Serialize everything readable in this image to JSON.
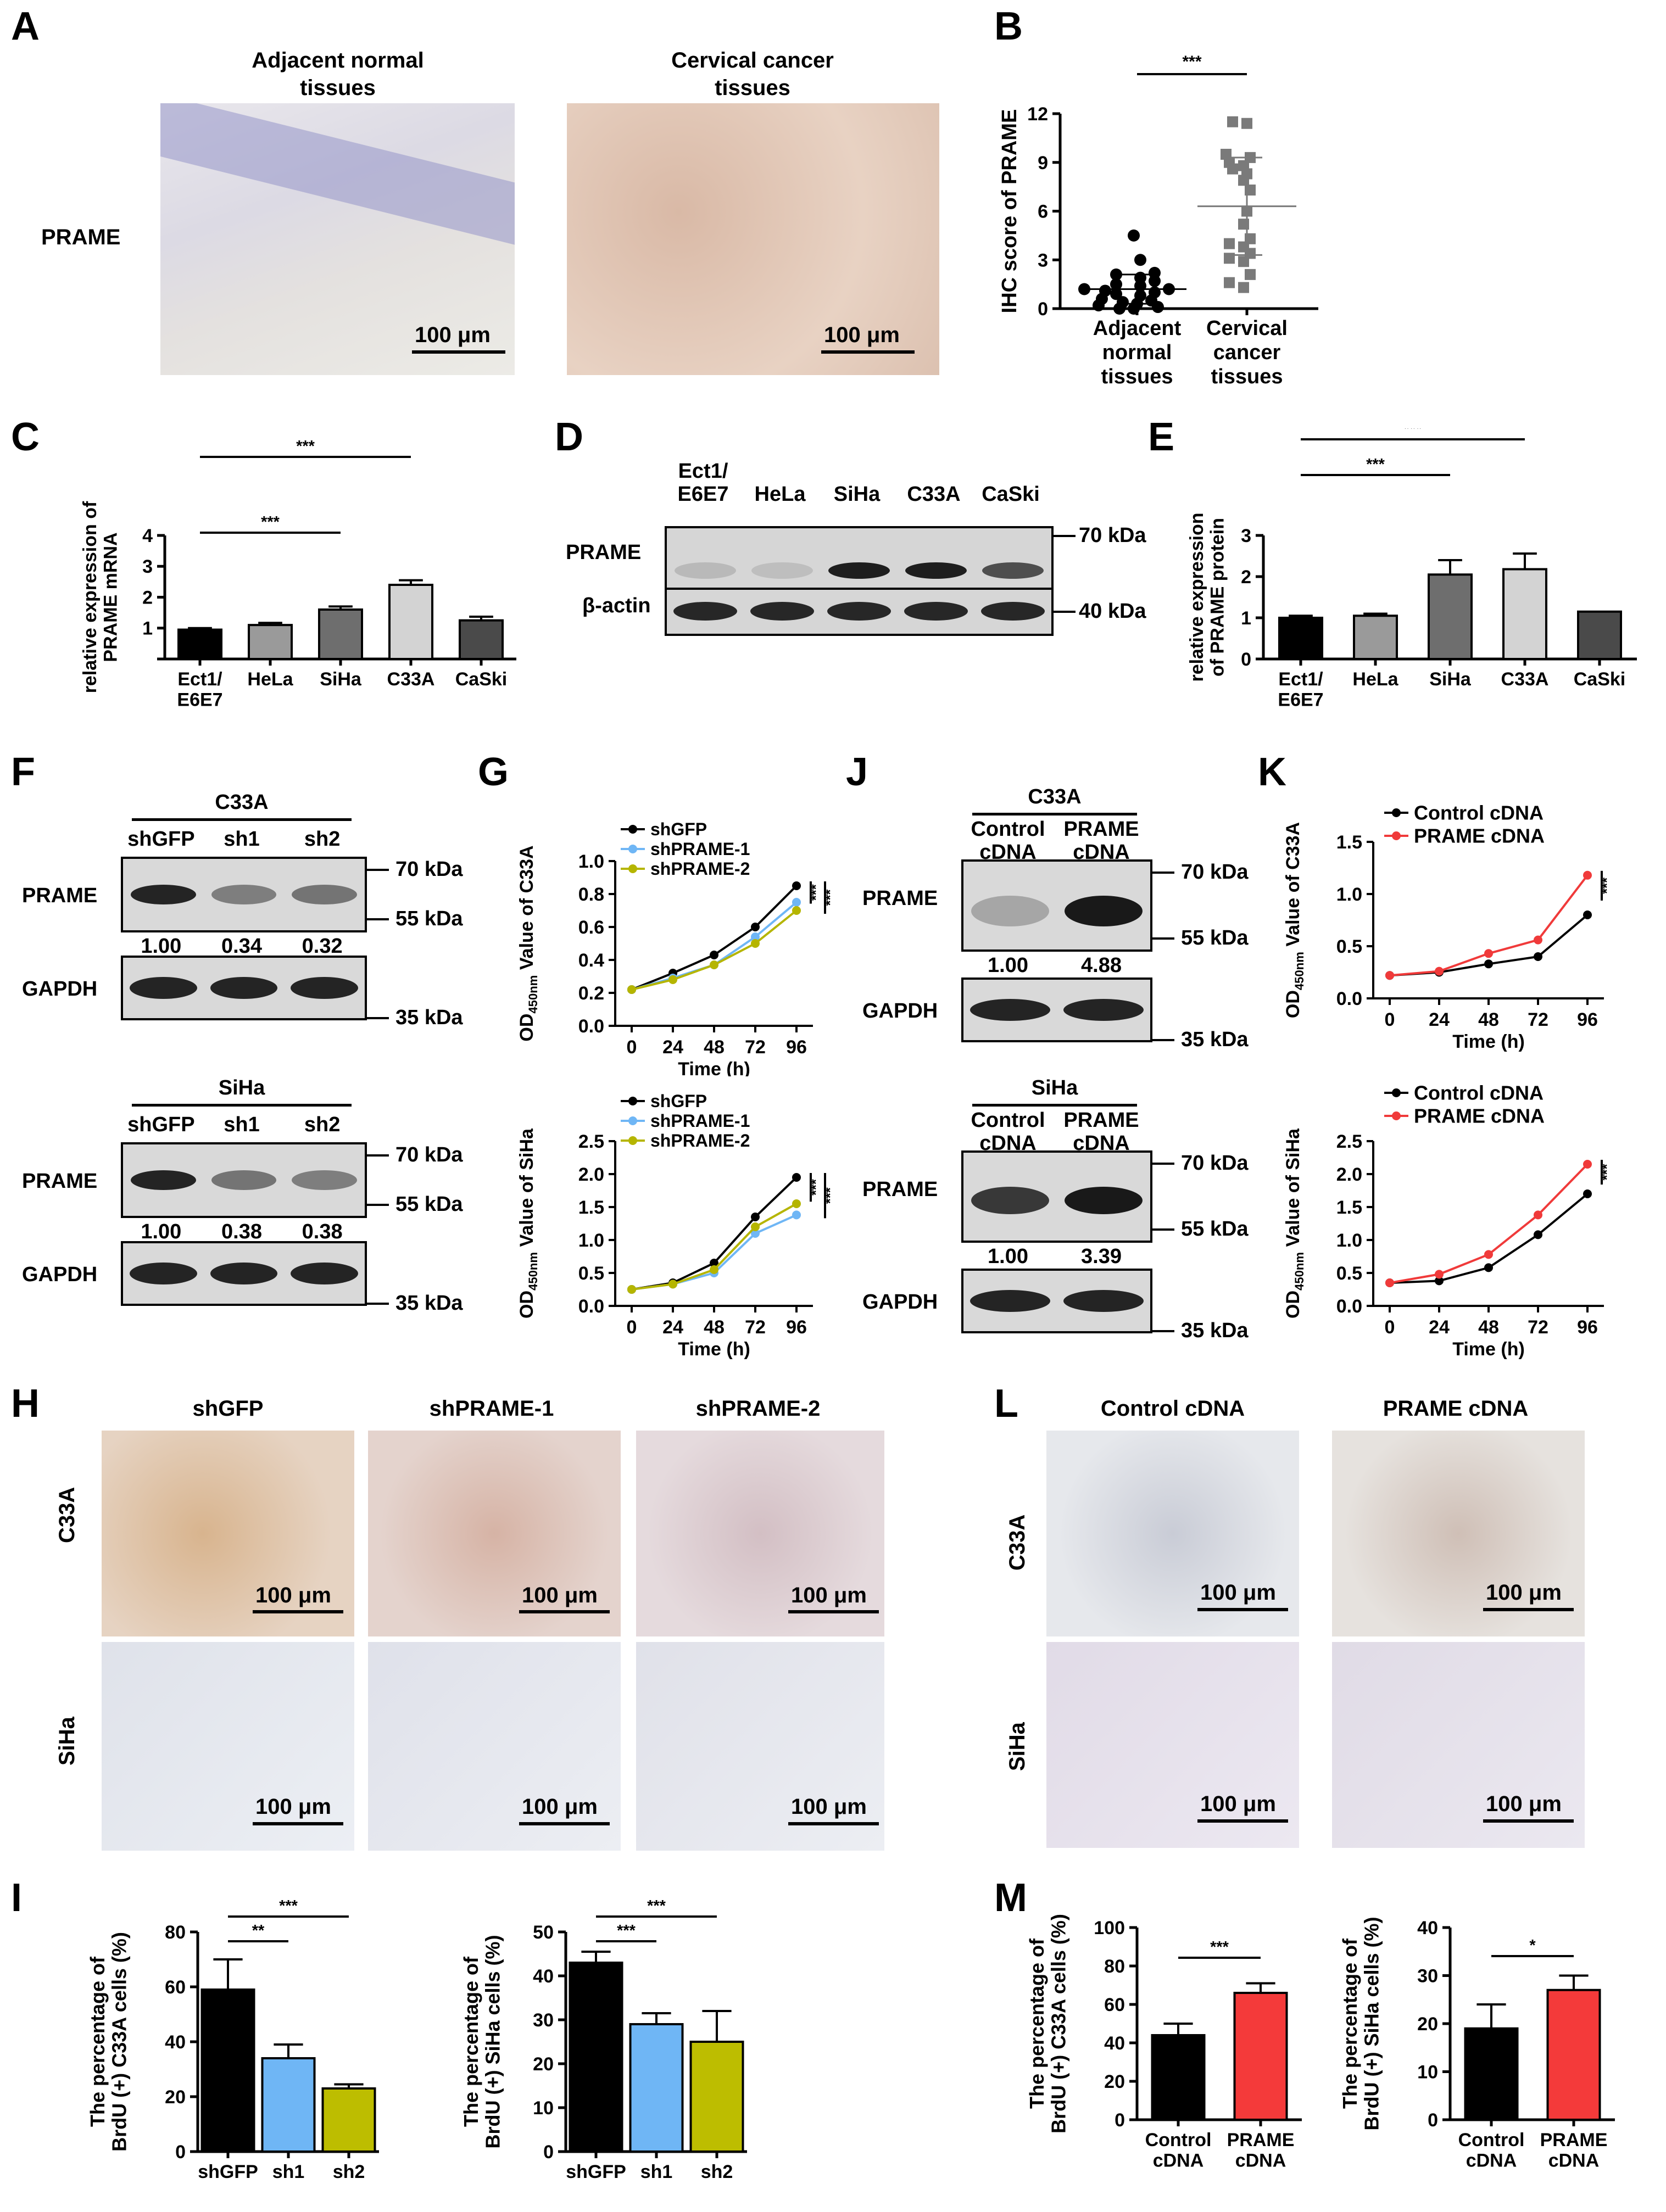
{
  "panels": {
    "A": {
      "label": "A",
      "col_titles": [
        "Adjacent normal\ntissues",
        "Cervical cancer\ntissues"
      ],
      "row_label": "PRAME",
      "scale": "100 μm"
    },
    "B": {
      "label": "B"
    },
    "C": {
      "label": "C"
    },
    "D": {
      "label": "D",
      "lanes": [
        "Ect1/\nE6E7",
        "HeLa",
        "SiHa",
        "C33A",
        "CaSki"
      ],
      "proteins": [
        "PRAME",
        "β-actin"
      ],
      "kda": [
        "70 kDa",
        "40 kDa"
      ]
    },
    "E": {
      "label": "E"
    },
    "F": {
      "label": "F",
      "blots": [
        {
          "cell": "C33A",
          "lanes": [
            "shGFP",
            "sh1",
            "sh2"
          ],
          "ratios": [
            "1.00",
            "0.34",
            "0.32"
          ],
          "kda": [
            "70 kDa",
            "55 kDa",
            "35 kDa"
          ],
          "proteins": [
            "PRAME",
            "GAPDH"
          ]
        },
        {
          "cell": "SiHa",
          "lanes": [
            "shGFP",
            "sh1",
            "sh2"
          ],
          "ratios": [
            "1.00",
            "0.38",
            "0.38"
          ],
          "kda": [
            "70 kDa",
            "55 kDa",
            "35 kDa"
          ],
          "proteins": [
            "PRAME",
            "GAPDH"
          ]
        }
      ]
    },
    "G": {
      "label": "G"
    },
    "J": {
      "label": "J",
      "blots": [
        {
          "cell": "C33A",
          "lanes": [
            "Control\ncDNA",
            "PRAME\ncDNA"
          ],
          "ratios": [
            "1.00",
            "4.88"
          ],
          "kda": [
            "70 kDa",
            "55 kDa",
            "35 kDa"
          ],
          "proteins": [
            "PRAME",
            "GAPDH"
          ]
        },
        {
          "cell": "SiHa",
          "lanes": [
            "Control\ncDNA",
            "PRAME\ncDNA"
          ],
          "ratios": [
            "1.00",
            "3.39"
          ],
          "kda": [
            "70 kDa",
            "55 kDa",
            "35 kDa"
          ],
          "proteins": [
            "PRAME",
            "GAPDH"
          ]
        }
      ]
    },
    "K": {
      "label": "K"
    },
    "H": {
      "label": "H",
      "col_titles": [
        "shGFP",
        "shPRAME-1",
        "shPRAME-2"
      ],
      "row_labels": [
        "C33A",
        "SiHa"
      ],
      "scale": "100 μm"
    },
    "L": {
      "label": "L",
      "col_titles": [
        "Control cDNA",
        "PRAME cDNA"
      ],
      "row_labels": [
        "C33A",
        "SiHa"
      ],
      "scale": "100 μm"
    },
    "I": {
      "label": "I"
    },
    "M": {
      "label": "M"
    }
  },
  "chart_data": [
    {
      "id": "B",
      "type": "scatter",
      "ylabel": "IHC score of PRAME",
      "ylim": [
        0,
        12
      ],
      "yticks": [
        0,
        3,
        6,
        9,
        12
      ],
      "categories": [
        "Adjacent\nnormal\ntissues",
        "Cervical\ncancer\ntissues"
      ],
      "series": [
        {
          "values": [
            0,
            0,
            0.1,
            0.2,
            0.3,
            0.4,
            0.5,
            0.6,
            0.8,
            0.9,
            1,
            1.1,
            1.2,
            1.2,
            1.4,
            1.5,
            1.7,
            1.9,
            2.1,
            2.2,
            3,
            4.5
          ],
          "mean": 1.2,
          "sd": 0.9,
          "color": "#000000",
          "marker": "circle"
        },
        {
          "values": [
            1.3,
            1.6,
            2.1,
            2.9,
            3.1,
            3.4,
            3.8,
            4.0,
            4.3,
            5.2,
            6.0,
            7.3,
            7.9,
            8.3,
            8.6,
            8.8,
            9.0,
            9.3,
            9.5,
            11.4,
            11.5
          ],
          "mean": 6.3,
          "sd": 3.0,
          "color": "#7a7a7a",
          "marker": "square"
        }
      ],
      "significance": [
        {
          "from": 0,
          "to": 1,
          "label": "***"
        }
      ]
    },
    {
      "id": "C",
      "type": "bar",
      "ylabel": "relative expression of\nPRAME mRNA",
      "ylim": [
        0,
        4
      ],
      "yticks": [
        "",
        "1",
        "2",
        "3",
        "4"
      ],
      "categories": [
        "Ect1/\nE6E7",
        "HeLa",
        "SiHa",
        "C33A",
        "CaSki"
      ],
      "values": [
        0.95,
        1.1,
        1.6,
        2.4,
        1.25
      ],
      "errors": [
        0.05,
        0.07,
        0.1,
        0.15,
        0.12
      ],
      "colors": [
        "#000000",
        "#9a9a9a",
        "#6e6e6e",
        "#d3d3d3",
        "#4a4a4a"
      ],
      "significance": [
        {
          "from": 0,
          "to": 2,
          "label": "***"
        },
        {
          "from": 0,
          "to": 3,
          "label": "***"
        }
      ]
    },
    {
      "id": "E",
      "type": "bar",
      "ylabel": "relative expression\nof PRAME protein",
      "ylim": [
        0,
        3
      ],
      "yticks": [
        "0",
        "1",
        "2",
        "3"
      ],
      "categories": [
        "Ect1/\nE6E7",
        "HeLa",
        "SiHa",
        "C33A",
        "CaSki"
      ],
      "values": [
        1.0,
        1.05,
        2.05,
        2.18,
        1.15
      ],
      "errors": [
        0.05,
        0.05,
        0.35,
        0.38,
        0
      ],
      "colors": [
        "#000000",
        "#9a9a9a",
        "#6e6e6e",
        "#d3d3d3",
        "#4a4a4a"
      ],
      "significance": [
        {
          "from": 0,
          "to": 2,
          "label": "***"
        },
        {
          "from": 0,
          "to": 3,
          "label": "***"
        }
      ]
    },
    {
      "id": "G1",
      "type": "line",
      "ylabel": "OD450nm Value of C33A",
      "xlabel": "Time (h)",
      "x": [
        0,
        24,
        48,
        72,
        96
      ],
      "ylim": [
        0,
        1.0
      ],
      "yticks": [
        "0.0",
        "0.2",
        "0.4",
        "0.6",
        "0.8",
        "1.0"
      ],
      "series": [
        {
          "name": "shGFP",
          "values": [
            0.22,
            0.32,
            0.43,
            0.6,
            0.85
          ],
          "color": "#000000"
        },
        {
          "name": "shPRAME-1",
          "values": [
            0.22,
            0.29,
            0.37,
            0.54,
            0.75
          ],
          "color": "#6fb6f5"
        },
        {
          "name": "shPRAME-2",
          "values": [
            0.22,
            0.28,
            0.37,
            0.5,
            0.7
          ],
          "color": "#b5b500"
        }
      ],
      "significance": [
        "***",
        "***"
      ]
    },
    {
      "id": "G2",
      "type": "line",
      "ylabel": "OD450nm Value of SiHa",
      "xlabel": "Time (h)",
      "x": [
        0,
        24,
        48,
        72,
        96
      ],
      "ylim": [
        0,
        2.5
      ],
      "yticks": [
        "0.0",
        "0.5",
        "1.0",
        "1.5",
        "2.0",
        "2.5"
      ],
      "series": [
        {
          "name": "shGFP",
          "values": [
            0.25,
            0.35,
            0.65,
            1.35,
            1.95
          ],
          "color": "#000000"
        },
        {
          "name": "shPRAME-1",
          "values": [
            0.25,
            0.33,
            0.5,
            1.1,
            1.38
          ],
          "color": "#6fb6f5"
        },
        {
          "name": "shPRAME-2",
          "values": [
            0.25,
            0.33,
            0.55,
            1.2,
            1.55
          ],
          "color": "#b5b500"
        }
      ],
      "significance": [
        "***",
        "***"
      ]
    },
    {
      "id": "K1",
      "type": "line",
      "ylabel": "OD450nm Value of C33A",
      "xlabel": "Time (h)",
      "x": [
        0,
        24,
        48,
        72,
        96
      ],
      "ylim": [
        0,
        1.5
      ],
      "yticks": [
        "0.0",
        "0.5",
        "1.0",
        "1.5"
      ],
      "series": [
        {
          "name": "Control cDNA",
          "values": [
            0.22,
            0.25,
            0.33,
            0.4,
            0.8
          ],
          "color": "#000000"
        },
        {
          "name": "PRAME cDNA",
          "values": [
            0.22,
            0.26,
            0.43,
            0.56,
            1.18
          ],
          "color": "#f03a3a"
        }
      ],
      "significance": [
        "***"
      ]
    },
    {
      "id": "K2",
      "type": "line",
      "ylabel": "OD450nm Value of SiHa",
      "xlabel": "Time (h)",
      "x": [
        0,
        24,
        48,
        72,
        96
      ],
      "ylim": [
        0,
        2.5
      ],
      "yticks": [
        "0.0",
        "0.5",
        "1.0",
        "1.5",
        "2.0",
        "2.5"
      ],
      "series": [
        {
          "name": "Control cDNA",
          "values": [
            0.35,
            0.38,
            0.58,
            1.08,
            1.7
          ],
          "color": "#000000"
        },
        {
          "name": "PRAME cDNA",
          "values": [
            0.35,
            0.48,
            0.78,
            1.38,
            2.15
          ],
          "color": "#f03a3a"
        }
      ],
      "significance": [
        "***"
      ]
    },
    {
      "id": "I1",
      "type": "bar",
      "ylabel": "The percentage of\nBrdU (+) C33A cells (%)",
      "ylim": [
        0,
        80
      ],
      "yticks": [
        "0",
        "20",
        "40",
        "60",
        "80"
      ],
      "categories": [
        "shGFP",
        "sh1",
        "sh2"
      ],
      "values": [
        59,
        34,
        23
      ],
      "errors": [
        11,
        5,
        1.5
      ],
      "colors": [
        "#000000",
        "#6fb6f5",
        "#bdbd00"
      ],
      "significance": [
        {
          "from": 0,
          "to": 1,
          "label": "**"
        },
        {
          "from": 0,
          "to": 2,
          "label": "***"
        }
      ]
    },
    {
      "id": "I2",
      "type": "bar",
      "ylabel": "The percentage of\nBrdU (+) SiHa cells (%)",
      "ylim": [
        0,
        50
      ],
      "yticks": [
        "0",
        "10",
        "20",
        "30",
        "40",
        "50"
      ],
      "categories": [
        "shGFP",
        "sh1",
        "sh2"
      ],
      "values": [
        43,
        29,
        25
      ],
      "errors": [
        2.5,
        2.5,
        7
      ],
      "colors": [
        "#000000",
        "#6fb6f5",
        "#bdbd00"
      ],
      "significance": [
        {
          "from": 0,
          "to": 1,
          "label": "***"
        },
        {
          "from": 0,
          "to": 2,
          "label": "***"
        }
      ]
    },
    {
      "id": "M1",
      "type": "bar",
      "ylabel": "The percentage of\nBrdU (+) C33A cells (%)",
      "ylim": [
        0,
        100
      ],
      "yticks": [
        "0",
        "20",
        "40",
        "60",
        "80",
        "100"
      ],
      "categories": [
        "Control\ncDNA",
        "PRAME\ncDNA"
      ],
      "values": [
        44,
        66
      ],
      "errors": [
        6,
        5
      ],
      "colors": [
        "#000000",
        "#f43a3a"
      ],
      "significance": [
        {
          "from": 0,
          "to": 1,
          "label": "***"
        }
      ]
    },
    {
      "id": "M2",
      "type": "bar",
      "ylabel": "The percentage of\nBrdU (+) SiHa cells (%)",
      "ylim": [
        0,
        40
      ],
      "yticks": [
        "0",
        "10",
        "20",
        "30",
        "40"
      ],
      "categories": [
        "Control\ncDNA",
        "PRAME\ncDNA"
      ],
      "values": [
        19,
        27
      ],
      "errors": [
        5,
        3
      ],
      "colors": [
        "#000000",
        "#f43a3a"
      ],
      "significance": [
        {
          "from": 0,
          "to": 1,
          "label": "*"
        }
      ]
    }
  ]
}
